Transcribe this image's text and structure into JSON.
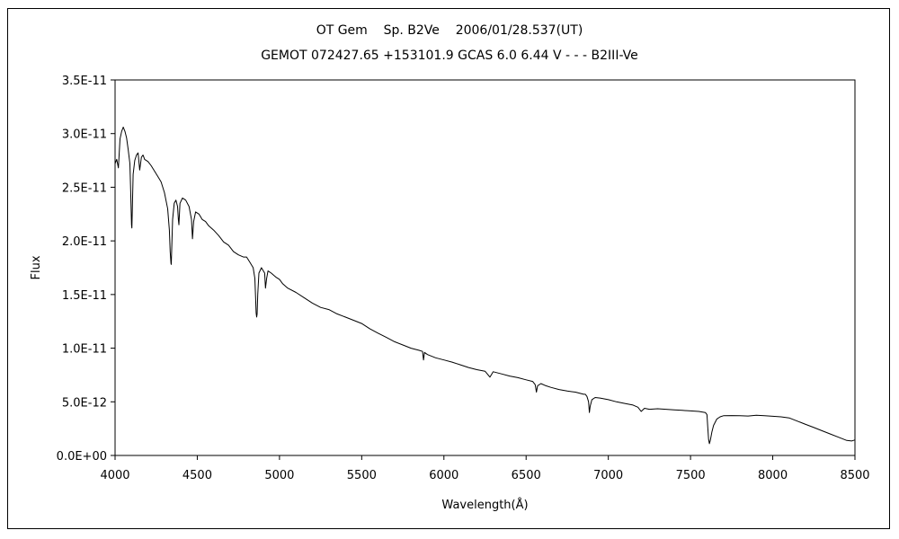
{
  "chart_data": {
    "type": "line",
    "title": "OT Gem    Sp. B2Ve    2006/01/28.537(UT)",
    "subtitle": "GEMOT 072427.65 +153101.9 GCAS 6.0 6.44 V - - - B2III-Ve",
    "xlabel": "Wavelength(Å)",
    "ylabel": "Flux",
    "xlim": [
      4000,
      8500
    ],
    "ylim": [
      0,
      3.5e-11
    ],
    "x_ticks": [
      4000,
      4500,
      5000,
      5500,
      6000,
      6500,
      7000,
      7500,
      8000,
      8500
    ],
    "x_tick_labels": [
      "4000",
      "4500",
      "5000",
      "5500",
      "6000",
      "6500",
      "7000",
      "7500",
      "8000",
      "8500"
    ],
    "y_ticks": [
      0,
      5e-12,
      1e-11,
      1.5e-11,
      2e-11,
      2.5e-11,
      3e-11,
      3.5e-11
    ],
    "y_tick_labels": [
      "0.0E+00",
      "5.0E-12",
      "1.0E-11",
      "1.5E-11",
      "2.0E-11",
      "2.5E-11",
      "3.0E-11",
      "3.5E-11"
    ],
    "grid": false,
    "legend": "none",
    "line_color": "#000000",
    "series": [
      {
        "x": [
          4000,
          4010,
          4020,
          4030,
          4040,
          4050,
          4060,
          4070,
          4080,
          4090,
          4095,
          4100,
          4102,
          4105,
          4110,
          4120,
          4130,
          4140,
          4150,
          4160,
          4170,
          4180,
          4200,
          4220,
          4240,
          4260,
          4280,
          4300,
          4320,
          4330,
          4335,
          4340,
          4342,
          4345,
          4350,
          4360,
          4370,
          4380,
          4385,
          4388,
          4395,
          4410,
          4430,
          4450,
          4465,
          4471,
          4478,
          4490,
          4510,
          4530,
          4550,
          4570,
          4600,
          4630,
          4660,
          4690,
          4720,
          4750,
          4780,
          4800,
          4820,
          4840,
          4850,
          4855,
          4858,
          4861,
          4864,
          4868,
          4875,
          4890,
          4910,
          4915,
          4922,
          4930,
          4950,
          4980,
          5000,
          5020,
          5050,
          5100,
          5150,
          5200,
          5250,
          5300,
          5350,
          5400,
          5450,
          5500,
          5550,
          5600,
          5650,
          5700,
          5750,
          5800,
          5850,
          5870,
          5876,
          5882,
          5900,
          5950,
          6000,
          6050,
          6100,
          6150,
          6200,
          6250,
          6280,
          6300,
          6350,
          6400,
          6450,
          6500,
          6540,
          6555,
          6563,
          6570,
          6590,
          6620,
          6650,
          6700,
          6750,
          6800,
          6850,
          6860,
          6870,
          6880,
          6885,
          6890,
          6900,
          6920,
          6950,
          7000,
          7050,
          7100,
          7150,
          7180,
          7200,
          7220,
          7250,
          7300,
          7350,
          7400,
          7450,
          7500,
          7550,
          7590,
          7600,
          7605,
          7610,
          7615,
          7620,
          7625,
          7630,
          7640,
          7660,
          7680,
          7700,
          7750,
          7800,
          7850,
          7900,
          7950,
          8000,
          8050,
          8100,
          8150,
          8200,
          8250,
          8300,
          8350,
          8400,
          8450,
          8480,
          8490,
          8500
        ],
        "y": [
          2.72e-11,
          2.76e-11,
          2.68e-11,
          2.95e-11,
          3.02e-11,
          3.06e-11,
          3.02e-11,
          2.96e-11,
          2.85e-11,
          2.72e-11,
          2.45e-11,
          2.15e-11,
          2.12e-11,
          2.3e-11,
          2.62e-11,
          2.75e-11,
          2.8e-11,
          2.82e-11,
          2.66e-11,
          2.78e-11,
          2.8e-11,
          2.76e-11,
          2.74e-11,
          2.7e-11,
          2.65e-11,
          2.6e-11,
          2.55e-11,
          2.45e-11,
          2.3e-11,
          2.1e-11,
          1.9e-11,
          1.79e-11,
          1.78e-11,
          1.95e-11,
          2.2e-11,
          2.35e-11,
          2.38e-11,
          2.32e-11,
          2.2e-11,
          2.15e-11,
          2.35e-11,
          2.4e-11,
          2.38e-11,
          2.32e-11,
          2.2e-11,
          2.02e-11,
          2.18e-11,
          2.27e-11,
          2.25e-11,
          2.2e-11,
          2.18e-11,
          2.14e-11,
          2.1e-11,
          2.05e-11,
          1.99e-11,
          1.96e-11,
          1.9e-11,
          1.87e-11,
          1.85e-11,
          1.85e-11,
          1.8e-11,
          1.75e-11,
          1.65e-11,
          1.45e-11,
          1.33e-11,
          1.29e-11,
          1.32e-11,
          1.5e-11,
          1.7e-11,
          1.75e-11,
          1.7e-11,
          1.56e-11,
          1.65e-11,
          1.72e-11,
          1.7e-11,
          1.66e-11,
          1.64e-11,
          1.6e-11,
          1.56e-11,
          1.52e-11,
          1.47e-11,
          1.42e-11,
          1.38e-11,
          1.36e-11,
          1.32e-11,
          1.29e-11,
          1.26e-11,
          1.23e-11,
          1.18e-11,
          1.14e-11,
          1.1e-11,
          1.06e-11,
          1.03e-11,
          1e-11,
          9.8e-12,
          9.7e-12,
          8.9e-12,
          9.6e-12,
          9.4e-12,
          9.1e-12,
          8.9e-12,
          8.7e-12,
          8.45e-12,
          8.2e-12,
          8e-12,
          7.85e-12,
          7.3e-12,
          7.8e-12,
          7.6e-12,
          7.4e-12,
          7.25e-12,
          7.05e-12,
          6.9e-12,
          6.6e-12,
          5.9e-12,
          6.5e-12,
          6.7e-12,
          6.5e-12,
          6.35e-12,
          6.15e-12,
          6e-12,
          5.9e-12,
          5.7e-12,
          5.7e-12,
          5.5e-12,
          5e-12,
          4e-12,
          4.6e-12,
          5.2e-12,
          5.4e-12,
          5.35e-12,
          5.2e-12,
          5e-12,
          4.85e-12,
          4.7e-12,
          4.5e-12,
          4.1e-12,
          4.4e-12,
          4.3e-12,
          4.35e-12,
          4.3e-12,
          4.25e-12,
          4.2e-12,
          4.15e-12,
          4.1e-12,
          4e-12,
          3.8e-12,
          2.6e-12,
          1.5e-12,
          1.1e-12,
          1.4e-12,
          1.8e-12,
          2.2e-12,
          2.8e-12,
          3.4e-12,
          3.6e-12,
          3.7e-12,
          3.72e-12,
          3.7e-12,
          3.68e-12,
          3.74e-12,
          3.7e-12,
          3.65e-12,
          3.6e-12,
          3.5e-12,
          3.2e-12,
          2.9e-12,
          2.6e-12,
          2.3e-12,
          2e-12,
          1.7e-12,
          1.4e-12,
          1.35e-12,
          1.4e-12,
          1.45e-12
        ]
      }
    ]
  }
}
